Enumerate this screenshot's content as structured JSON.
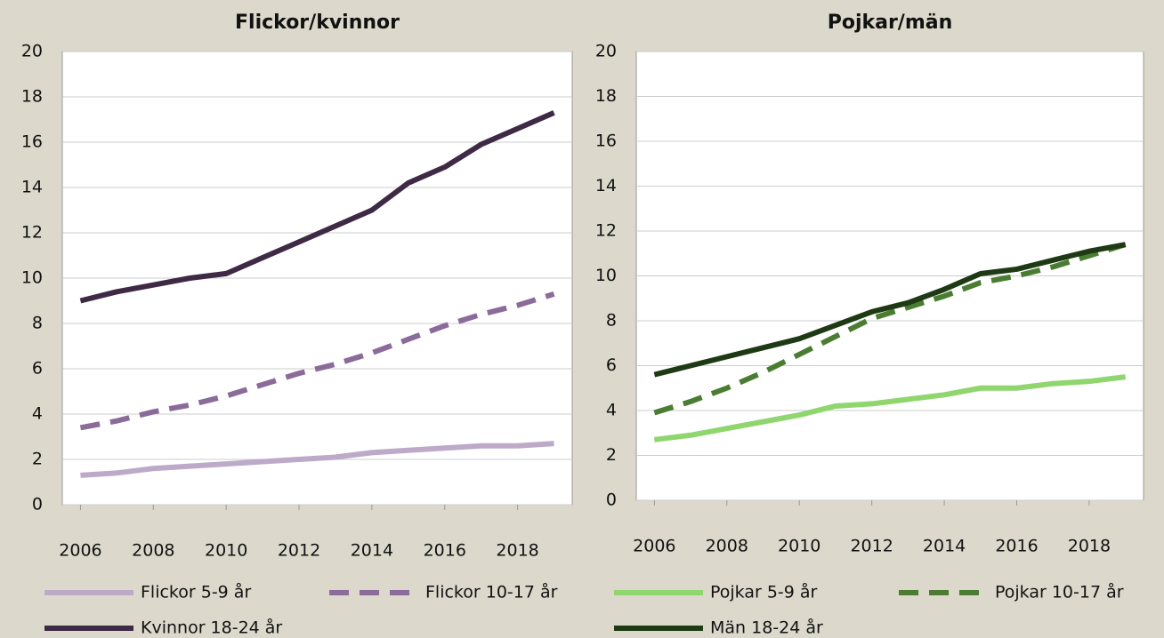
{
  "chart_data": [
    {
      "type": "line",
      "title": "Flickor/kvinnor",
      "x": [
        2006,
        2007,
        2008,
        2009,
        2010,
        2011,
        2012,
        2013,
        2014,
        2015,
        2016,
        2017,
        2018,
        2019
      ],
      "xlim": [
        2005.5,
        2019.5
      ],
      "xticks": [
        2006,
        2008,
        2010,
        2012,
        2014,
        2016,
        2018
      ],
      "ylim": [
        0,
        20
      ],
      "yticks": [
        0,
        2,
        4,
        6,
        8,
        10,
        12,
        14,
        16,
        18,
        20
      ],
      "grid": true,
      "series": [
        {
          "name": "Flickor 5-9 år",
          "color": "#bcaac8",
          "dashed": false,
          "values": [
            1.3,
            1.4,
            1.6,
            1.7,
            1.8,
            1.9,
            2.0,
            2.1,
            2.3,
            2.4,
            2.5,
            2.6,
            2.6,
            2.7
          ]
        },
        {
          "name": "Flickor 10-17 år",
          "color": "#8a6b9a",
          "dashed": true,
          "values": [
            3.4,
            3.7,
            4.1,
            4.4,
            4.8,
            5.3,
            5.8,
            6.2,
            6.7,
            7.3,
            7.9,
            8.4,
            8.8,
            9.3
          ]
        },
        {
          "name": "Kvinnor 18-24 år",
          "color": "#3e2a45",
          "dashed": false,
          "values": [
            9.0,
            9.4,
            9.7,
            10.0,
            10.2,
            10.9,
            11.6,
            12.3,
            13.0,
            14.2,
            14.9,
            15.9,
            16.6,
            17.3
          ]
        }
      ]
    },
    {
      "type": "line",
      "title": "Pojkar/män",
      "x": [
        2006,
        2007,
        2008,
        2009,
        2010,
        2011,
        2012,
        2013,
        2014,
        2015,
        2016,
        2017,
        2018,
        2019
      ],
      "xlim": [
        2005.5,
        2019.5
      ],
      "xticks": [
        2006,
        2008,
        2010,
        2012,
        2014,
        2016,
        2018
      ],
      "ylim": [
        0,
        20
      ],
      "yticks": [
        0,
        2,
        4,
        6,
        8,
        10,
        12,
        14,
        16,
        18,
        20
      ],
      "grid": true,
      "series": [
        {
          "name": "Pojkar 5-9 år",
          "color": "#8fd66e",
          "dashed": false,
          "values": [
            2.7,
            2.9,
            3.2,
            3.5,
            3.8,
            4.2,
            4.3,
            4.5,
            4.7,
            5.0,
            5.0,
            5.2,
            5.3,
            5.5
          ]
        },
        {
          "name": "Pojkar 10-17 år",
          "color": "#4a7d32",
          "dashed": true,
          "values": [
            3.9,
            4.4,
            5.0,
            5.7,
            6.5,
            7.3,
            8.1,
            8.6,
            9.1,
            9.7,
            10.0,
            10.4,
            10.9,
            11.4
          ]
        },
        {
          "name": "Män 18-24 år",
          "color": "#1e3a14",
          "dashed": false,
          "values": [
            5.6,
            6.0,
            6.4,
            6.8,
            7.2,
            7.8,
            8.4,
            8.8,
            9.4,
            10.1,
            10.3,
            10.7,
            11.1,
            11.4
          ]
        }
      ]
    }
  ]
}
